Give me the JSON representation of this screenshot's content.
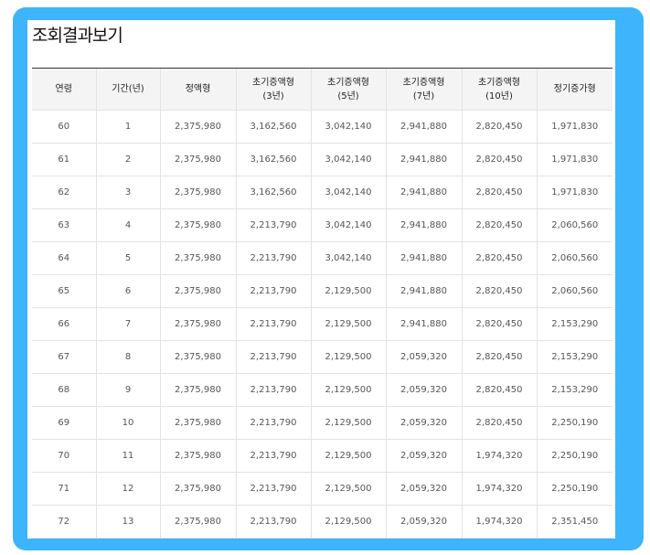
{
  "title": "조회결과보기",
  "table": {
    "header": [
      "연령",
      "기간(년)",
      "정액형",
      "초기증액형\n(3년)",
      "초기증액형\n(5년)",
      "초기증액형\n(7년)",
      "초기증액형\n(10년)",
      "정기증가형"
    ],
    "rows": [
      [
        "60",
        "1",
        "2,375,980",
        "3,162,560",
        "3,042,140",
        "2,941,880",
        "2,820,450",
        "1,971,830"
      ],
      [
        "61",
        "2",
        "2,375,980",
        "3,162,560",
        "3,042,140",
        "2,941,880",
        "2,820,450",
        "1,971,830"
      ],
      [
        "62",
        "3",
        "2,375,980",
        "3,162,560",
        "3,042,140",
        "2,941,880",
        "2,820,450",
        "1,971,830"
      ],
      [
        "63",
        "4",
        "2,375,980",
        "2,213,790",
        "3,042,140",
        "2,941,880",
        "2,820,450",
        "2,060,560"
      ],
      [
        "64",
        "5",
        "2,375,980",
        "2,213,790",
        "3,042,140",
        "2,941,880",
        "2,820,450",
        "2,060,560"
      ],
      [
        "65",
        "6",
        "2,375,980",
        "2,213,790",
        "2,129,500",
        "2,941,880",
        "2,820,450",
        "2,060,560"
      ],
      [
        "66",
        "7",
        "2,375,980",
        "2,213,790",
        "2,129,500",
        "2,941,880",
        "2,820,450",
        "2,153,290"
      ],
      [
        "67",
        "8",
        "2,375,980",
        "2,213,790",
        "2,129,500",
        "2,059,320",
        "2,820,450",
        "2,153,290"
      ],
      [
        "68",
        "9",
        "2,375,980",
        "2,213,790",
        "2,129,500",
        "2,059,320",
        "2,820,450",
        "2,153,290"
      ],
      [
        "69",
        "10",
        "2,375,980",
        "2,213,790",
        "2,129,500",
        "2,059,320",
        "2,820,450",
        "2,250,190"
      ],
      [
        "70",
        "11",
        "2,375,980",
        "2,213,790",
        "2,129,500",
        "2,059,320",
        "1,974,320",
        "2,250,190"
      ],
      [
        "71",
        "12",
        "2,375,980",
        "2,213,790",
        "2,129,500",
        "2,059,320",
        "1,974,320",
        "2,250,190"
      ],
      [
        "72",
        "13",
        "2,375,980",
        "2,213,790",
        "2,129,500",
        "2,059,320",
        "1,974,320",
        "2,351,450"
      ]
    ]
  }
}
